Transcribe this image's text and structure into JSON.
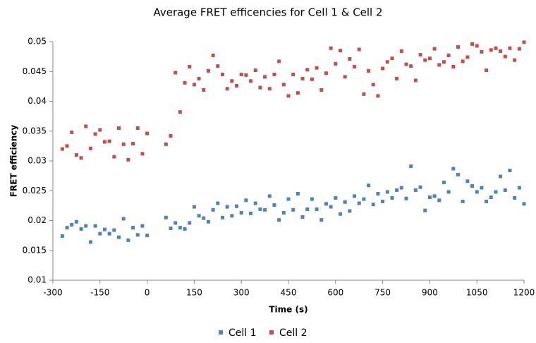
{
  "chart_data": {
    "type": "scatter",
    "title": "Average FRET efficencies for Cell 1 & Cell 2",
    "xlabel": "Time (s)",
    "ylabel": "FRET efficiency",
    "legend": "bottom",
    "xlim": [
      -300,
      1200
    ],
    "xticks": [
      -300,
      -150,
      0,
      150,
      300,
      450,
      600,
      750,
      900,
      1050,
      1200
    ],
    "ylim": [
      0.01,
      0.05
    ],
    "yticks": [
      0.01,
      0.015,
      0.02,
      0.025,
      0.03,
      0.035,
      0.04,
      0.045,
      0.05
    ],
    "x": [
      -270,
      -255,
      -240,
      -225,
      -210,
      -195,
      -180,
      -165,
      -150,
      -135,
      -120,
      -105,
      -90,
      -75,
      -60,
      -45,
      -30,
      -15,
      0,
      60,
      75,
      90,
      105,
      120,
      135,
      150,
      165,
      180,
      195,
      210,
      225,
      240,
      255,
      270,
      285,
      300,
      315,
      330,
      345,
      360,
      375,
      390,
      405,
      420,
      435,
      450,
      465,
      480,
      495,
      510,
      525,
      540,
      555,
      570,
      585,
      600,
      615,
      630,
      645,
      660,
      675,
      690,
      705,
      720,
      735,
      750,
      765,
      780,
      795,
      810,
      825,
      840,
      855,
      870,
      885,
      900,
      915,
      930,
      945,
      960,
      975,
      990,
      1005,
      1020,
      1035,
      1050,
      1065,
      1080,
      1095,
      1110,
      1125,
      1140,
      1155,
      1170,
      1185,
      1200
    ],
    "series": [
      {
        "name": "Cell 1",
        "color": "#4f81bd",
        "values": [
          0.0174,
          0.0188,
          0.0193,
          0.0198,
          0.0186,
          0.0191,
          0.0164,
          0.0191,
          0.0178,
          0.0185,
          0.0178,
          0.0184,
          0.0172,
          0.0203,
          0.0167,
          0.0188,
          0.0176,
          0.0191,
          0.0175,
          0.0205,
          0.0187,
          0.0196,
          0.0188,
          0.0186,
          0.0196,
          0.0223,
          0.0208,
          0.0204,
          0.0198,
          0.0218,
          0.0229,
          0.0205,
          0.0223,
          0.0208,
          0.0224,
          0.0213,
          0.0234,
          0.0212,
          0.0229,
          0.0219,
          0.0218,
          0.0241,
          0.0226,
          0.0201,
          0.0213,
          0.0236,
          0.0218,
          0.0245,
          0.0206,
          0.0219,
          0.0236,
          0.0219,
          0.0201,
          0.0228,
          0.0223,
          0.0238,
          0.0211,
          0.0231,
          0.0216,
          0.0241,
          0.0229,
          0.0236,
          0.0259,
          0.0227,
          0.0245,
          0.0232,
          0.0248,
          0.0238,
          0.0251,
          0.0255,
          0.0237,
          0.0291,
          0.0251,
          0.0256,
          0.0217,
          0.0239,
          0.0241,
          0.0234,
          0.0264,
          0.0248,
          0.0287,
          0.0277,
          0.0232,
          0.0266,
          0.0258,
          0.0248,
          0.0255,
          0.0232,
          0.0239,
          0.0248,
          0.0274,
          0.0251,
          0.0284,
          0.0238,
          0.0255,
          0.0228
        ]
      },
      {
        "name": "Cell 2",
        "color": "#c0504d",
        "values": [
          0.032,
          0.0325,
          0.0348,
          0.031,
          0.0305,
          0.0358,
          0.0321,
          0.0345,
          0.0352,
          0.0332,
          0.0333,
          0.0307,
          0.0355,
          0.0328,
          0.0302,
          0.0329,
          0.0355,
          0.0312,
          0.0346,
          0.0328,
          0.0342,
          0.0448,
          0.0382,
          0.0431,
          0.0458,
          0.0428,
          0.0438,
          0.0419,
          0.0451,
          0.0477,
          0.0459,
          0.0445,
          0.0421,
          0.0434,
          0.0426,
          0.0445,
          0.0444,
          0.0434,
          0.0452,
          0.0423,
          0.0441,
          0.0421,
          0.0445,
          0.0467,
          0.0428,
          0.0409,
          0.0445,
          0.0414,
          0.0438,
          0.0453,
          0.0437,
          0.0456,
          0.0419,
          0.0447,
          0.0489,
          0.0463,
          0.0485,
          0.0441,
          0.0471,
          0.0458,
          0.0487,
          0.0412,
          0.0451,
          0.0428,
          0.0409,
          0.0455,
          0.0466,
          0.0472,
          0.0438,
          0.0484,
          0.0462,
          0.0459,
          0.0435,
          0.0478,
          0.0469,
          0.0472,
          0.0488,
          0.0461,
          0.0466,
          0.0477,
          0.0458,
          0.0491,
          0.0467,
          0.0474,
          0.0496,
          0.0493,
          0.0483,
          0.0452,
          0.0486,
          0.0489,
          0.0484,
          0.0475,
          0.0489,
          0.0469,
          0.0488,
          0.0499
        ]
      }
    ]
  }
}
